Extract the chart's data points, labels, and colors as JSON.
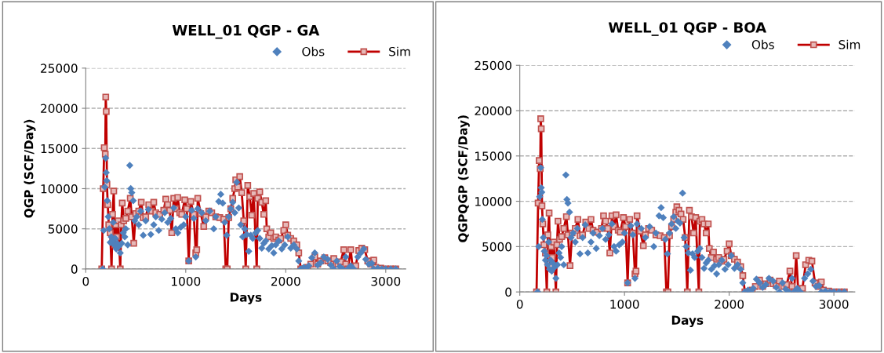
{
  "chart_data": [
    {
      "type": "line",
      "title": "WELL_01 QGP - GA",
      "xlabel": "Days",
      "ylabel": "QGP (SCF/Day)",
      "xlim": [
        0,
        3200
      ],
      "xticks": [
        0,
        1000,
        2000,
        3000
      ],
      "ylim": [
        0,
        25000
      ],
      "yticks": [
        0,
        5000,
        10000,
        15000,
        20000,
        25000
      ],
      "grid": "y",
      "legend": "top right",
      "series": [
        {
          "name": "Obs",
          "type": "scatter",
          "marker": "diamond",
          "color": "#4f81bd",
          "x": [
            170,
            180,
            190,
            200,
            205,
            210,
            215,
            225,
            235,
            245,
            255,
            265,
            275,
            285,
            295,
            305,
            315,
            330,
            345,
            360,
            375,
            390,
            400,
            420,
            440,
            450,
            460,
            475,
            490,
            510,
            530,
            550,
            575,
            600,
            625,
            650,
            680,
            700,
            730,
            760,
            790,
            820,
            850,
            880,
            900,
            920,
            950,
            980,
            1000,
            1030,
            1060,
            1080,
            1100,
            1120,
            1160,
            1200,
            1240,
            1280,
            1300,
            1330,
            1350,
            1370,
            1390,
            1410,
            1430,
            1450,
            1470,
            1490,
            1510,
            1530,
            1550,
            1570,
            1590,
            1610,
            1630,
            1650,
            1670,
            1700,
            1720,
            1740,
            1760,
            1780,
            1800,
            1830,
            1860,
            1880,
            1900,
            1930,
            1960,
            1990,
            2020,
            2050,
            2080,
            2110,
            2130,
            2150,
            2180,
            2200,
            2230,
            2260,
            2290,
            2320,
            2350,
            2380,
            2420,
            2450,
            2480,
            2510,
            2540,
            2570,
            2600,
            2620,
            2650,
            2680,
            2720,
            2750,
            2780,
            2800,
            2830,
            2860,
            2880,
            2920,
            2960,
            3000,
            3050,
            3100
          ],
          "values": [
            0,
            4800,
            10200,
            13800,
            12000,
            11000,
            8500,
            6500,
            5000,
            3300,
            4000,
            3500,
            5800,
            3000,
            3800,
            2500,
            3200,
            2800,
            2000,
            3200,
            4500,
            4000,
            5000,
            3000,
            12900,
            10000,
            9500,
            8500,
            6000,
            6500,
            5500,
            7200,
            4200,
            6000,
            7400,
            4300,
            5500,
            6500,
            4800,
            6200,
            7000,
            5800,
            6300,
            7600,
            5000,
            4500,
            5200,
            5500,
            6500,
            1000,
            7300,
            6300,
            1500,
            7500,
            7000,
            6000,
            7200,
            5000,
            6500,
            8400,
            9300,
            8200,
            5800,
            4200,
            6500,
            7500,
            8300,
            7000,
            10800,
            7600,
            5500,
            4000,
            5000,
            4300,
            2200,
            4200,
            3800,
            4500,
            4800,
            3800,
            2600,
            3200,
            3500,
            2500,
            2900,
            2000,
            3000,
            3500,
            2500,
            3000,
            4000,
            2600,
            3000,
            2500,
            1000,
            0,
            200,
            0,
            400,
            1400,
            2000,
            500,
            800,
            1500,
            1200,
            500,
            0,
            1000,
            300,
            0,
            1500,
            0,
            400,
            0,
            1500,
            2000,
            2500,
            1200,
            600,
            700,
            0,
            100,
            0,
            0,
            0,
            0
          ]
        },
        {
          "name": "Sim",
          "marker": "square",
          "color": "#c00000",
          "x": [
            160,
            175,
            185,
            195,
            200,
            205,
            212,
            220,
            230,
            245,
            258,
            268,
            280,
            290,
            300,
            310,
            325,
            345,
            355,
            365,
            380,
            400,
            420,
            445,
            460,
            480,
            500,
            530,
            555,
            575,
            600,
            630,
            660,
            680,
            700,
            740,
            780,
            800,
            820,
            840,
            860,
            880,
            900,
            920,
            940,
            960,
            990,
            1010,
            1030,
            1050,
            1080,
            1100,
            1110,
            1120,
            1150,
            1180,
            1200,
            1230,
            1260,
            1300,
            1340,
            1380,
            1400,
            1415,
            1430,
            1450,
            1470,
            1490,
            1500,
            1520,
            1540,
            1560,
            1580,
            1600,
            1620,
            1640,
            1660,
            1680,
            1710,
            1720,
            1740,
            1760,
            1780,
            1800,
            1810,
            1830,
            1850,
            1880,
            1900,
            1930,
            1950,
            1980,
            2000,
            2020,
            2050,
            2080,
            2110,
            2130,
            2150,
            2180,
            2220,
            2250,
            2290,
            2320,
            2350,
            2390,
            2420,
            2450,
            2480,
            2520,
            2550,
            2580,
            2600,
            2620,
            2650,
            2670,
            2700,
            2730,
            2760,
            2790,
            2820,
            2850,
            2880,
            2900,
            2950,
            3000,
            3050,
            3100
          ],
          "values": [
            0,
            10000,
            15100,
            14300,
            21400,
            19600,
            10500,
            8000,
            5500,
            4500,
            0,
            6800,
            9700,
            3000,
            5500,
            4000,
            6000,
            0,
            5500,
            8200,
            6000,
            6300,
            7200,
            8800,
            6500,
            3200,
            6900,
            7200,
            8300,
            6400,
            6500,
            8000,
            7200,
            8300,
            7000,
            6800,
            7300,
            8700,
            8000,
            7300,
            4500,
            8800,
            7500,
            8900,
            7000,
            6800,
            8600,
            7500,
            1000,
            8400,
            6800,
            2000,
            2400,
            8800,
            6900,
            5300,
            6500,
            7200,
            7000,
            6500,
            6400,
            6200,
            0,
            0,
            6400,
            7500,
            8800,
            10000,
            11100,
            10200,
            11500,
            9500,
            6000,
            0,
            10400,
            9000,
            6700,
            9400,
            0,
            8800,
            9600,
            8300,
            6800,
            8500,
            5000,
            4000,
            4500,
            3800,
            4000,
            3600,
            3800,
            4800,
            5500,
            4200,
            3800,
            3500,
            3000,
            2000,
            0,
            0,
            200,
            600,
            1500,
            600,
            1000,
            1400,
            1000,
            800,
            1300,
            600,
            900,
            2400,
            600,
            0,
            2400,
            0,
            400,
            2300,
            2600,
            2400,
            1000,
            600,
            1100,
            200,
            100,
            0,
            0,
            0
          ]
        }
      ]
    },
    {
      "type": "line",
      "title": "WELL_01 QGP - BOA",
      "xlabel": "Days",
      "ylabel": "QGPQGP (SCF/Day)",
      "xlim": [
        0,
        3200
      ],
      "xticks": [
        0,
        1000,
        2000,
        3000
      ],
      "ylim": [
        0,
        25000
      ],
      "yticks": [
        0,
        5000,
        10000,
        15000,
        20000,
        25000
      ],
      "grid": "y",
      "legend": "top right",
      "series": [
        {
          "name": "Obs",
          "type": "scatter",
          "marker": "diamond",
          "color": "#4f81bd",
          "x": [
            170,
            180,
            190,
            200,
            205,
            210,
            215,
            225,
            235,
            245,
            255,
            265,
            275,
            285,
            295,
            305,
            315,
            330,
            345,
            360,
            375,
            390,
            400,
            420,
            440,
            450,
            460,
            475,
            490,
            510,
            530,
            550,
            575,
            600,
            625,
            650,
            680,
            700,
            730,
            760,
            790,
            820,
            850,
            880,
            900,
            920,
            950,
            980,
            1000,
            1030,
            1060,
            1080,
            1100,
            1120,
            1160,
            1200,
            1240,
            1280,
            1300,
            1330,
            1350,
            1370,
            1390,
            1410,
            1430,
            1450,
            1470,
            1490,
            1510,
            1530,
            1555,
            1570,
            1590,
            1610,
            1630,
            1650,
            1670,
            1700,
            1720,
            1740,
            1760,
            1780,
            1800,
            1830,
            1860,
            1880,
            1900,
            1930,
            1960,
            1990,
            2020,
            2050,
            2080,
            2110,
            2130,
            2150,
            2180,
            2200,
            2230,
            2260,
            2290,
            2320,
            2350,
            2380,
            2420,
            2450,
            2480,
            2510,
            2540,
            2570,
            2600,
            2620,
            2650,
            2680,
            2720,
            2750,
            2780,
            2800,
            2830,
            2860,
            2880,
            2920,
            2960,
            3000,
            3050,
            3100
          ],
          "values": [
            0,
            5000,
            10500,
            13700,
            11500,
            11000,
            8000,
            6000,
            4500,
            3500,
            4000,
            3000,
            5500,
            2500,
            3500,
            2300,
            3200,
            2700,
            1500,
            3000,
            4300,
            3800,
            5000,
            3000,
            12900,
            10200,
            9800,
            8800,
            6000,
            6500,
            5500,
            7000,
            4200,
            6000,
            7400,
            4300,
            5500,
            6500,
            4800,
            6200,
            7000,
            5800,
            6300,
            7500,
            5000,
            4500,
            5200,
            5500,
            6500,
            1000,
            7300,
            6300,
            1500,
            7500,
            7000,
            6000,
            7200,
            5000,
            6500,
            8400,
            9300,
            8200,
            5800,
            4200,
            6500,
            7500,
            8300,
            7000,
            7800,
            7600,
            10900,
            6000,
            5000,
            4300,
            2400,
            4200,
            3800,
            4500,
            4800,
            3800,
            2600,
            3200,
            3500,
            2500,
            2900,
            2000,
            3000,
            3500,
            2500,
            3000,
            4000,
            2600,
            3000,
            2500,
            1000,
            0,
            200,
            0,
            400,
            1400,
            1000,
            500,
            800,
            1500,
            1200,
            500,
            0,
            1000,
            300,
            0,
            1500,
            0,
            400,
            0,
            1500,
            2000,
            2500,
            1200,
            600,
            700,
            0,
            100,
            0,
            0,
            0,
            0
          ]
        },
        {
          "name": "Sim",
          "marker": "square",
          "color": "#c00000",
          "x": [
            160,
            175,
            185,
            195,
            200,
            205,
            212,
            220,
            230,
            245,
            258,
            268,
            280,
            290,
            300,
            310,
            325,
            345,
            355,
            365,
            380,
            400,
            420,
            445,
            460,
            480,
            500,
            530,
            555,
            575,
            600,
            630,
            660,
            680,
            700,
            740,
            780,
            800,
            820,
            840,
            860,
            880,
            900,
            920,
            940,
            960,
            990,
            1010,
            1030,
            1050,
            1080,
            1100,
            1110,
            1120,
            1150,
            1180,
            1200,
            1230,
            1260,
            1300,
            1340,
            1380,
            1400,
            1415,
            1430,
            1450,
            1470,
            1490,
            1500,
            1520,
            1540,
            1560,
            1580,
            1600,
            1620,
            1640,
            1660,
            1680,
            1710,
            1720,
            1740,
            1760,
            1780,
            1800,
            1810,
            1830,
            1850,
            1880,
            1900,
            1930,
            1950,
            1980,
            2000,
            2020,
            2050,
            2080,
            2110,
            2130,
            2150,
            2180,
            2220,
            2250,
            2290,
            2320,
            2350,
            2390,
            2420,
            2450,
            2480,
            2520,
            2550,
            2580,
            2600,
            2620,
            2640,
            2660,
            2700,
            2730,
            2760,
            2790,
            2820,
            2850,
            2880,
            2900,
            2950,
            3000,
            3050,
            3100
          ],
          "values": [
            0,
            9800,
            14500,
            13600,
            19100,
            18000,
            9500,
            7500,
            5200,
            4300,
            0,
            6300,
            8700,
            2800,
            5000,
            3800,
            5500,
            0,
            5200,
            7800,
            5800,
            6100,
            7000,
            8300,
            6300,
            2900,
            6500,
            7000,
            8000,
            6200,
            6300,
            7700,
            7000,
            8000,
            6800,
            6600,
            7000,
            8400,
            7800,
            7000,
            4300,
            8400,
            7200,
            8500,
            6800,
            6600,
            8200,
            7200,
            1000,
            8000,
            6500,
            2000,
            2300,
            8400,
            6700,
            5100,
            6300,
            7000,
            6800,
            6300,
            6200,
            6000,
            0,
            0,
            6200,
            7200,
            8000,
            8800,
            9400,
            9000,
            8600,
            8000,
            6000,
            0,
            9000,
            8300,
            6500,
            8200,
            0,
            7800,
            8000,
            7500,
            6500,
            7500,
            4800,
            3800,
            4400,
            3600,
            3800,
            3400,
            3600,
            4500,
            5300,
            4000,
            3600,
            3300,
            2800,
            1800,
            0,
            0,
            200,
            600,
            1300,
            600,
            900,
            1300,
            900,
            700,
            1200,
            600,
            800,
            2300,
            600,
            0,
            4000,
            0,
            400,
            3000,
            3500,
            3400,
            1000,
            600,
            1100,
            200,
            100,
            0,
            0,
            0
          ]
        }
      ]
    }
  ]
}
